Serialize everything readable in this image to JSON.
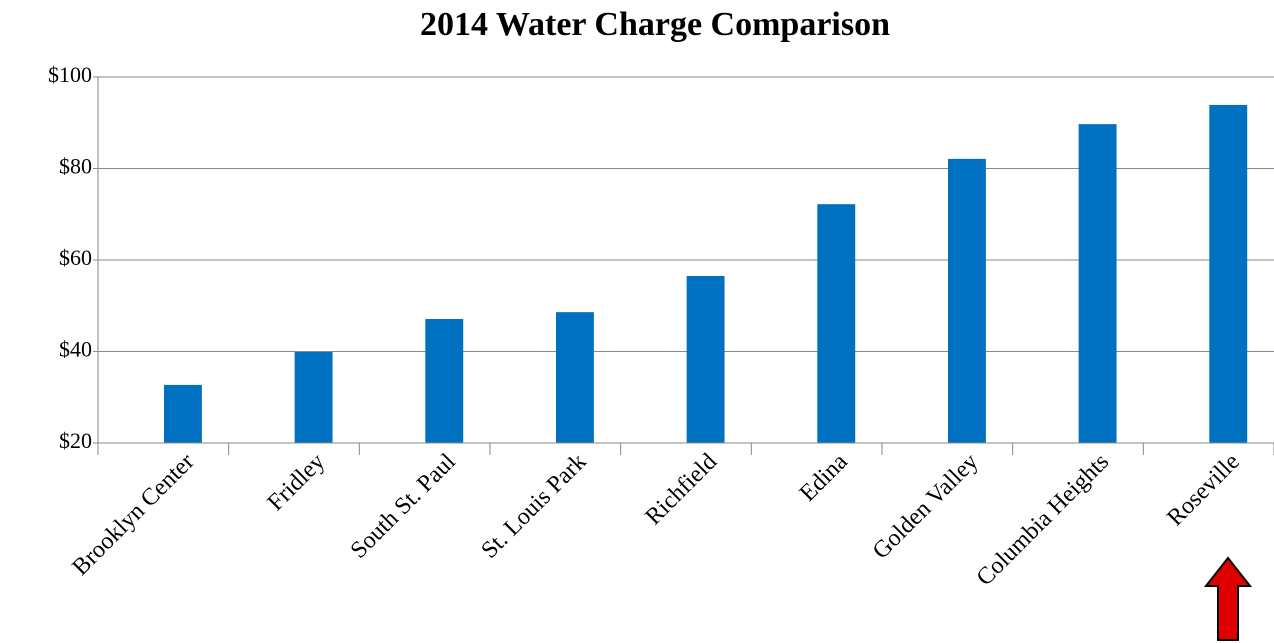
{
  "chart_data": {
    "type": "bar",
    "title": "2014 Water Charge Comparison",
    "categories": [
      "Brooklyn Center",
      "Fridley",
      "South St. Paul",
      "St. Louis Park",
      "Richfield",
      "Edina",
      "Golden Valley",
      "Columbia Heights",
      "Roseville"
    ],
    "values": [
      32.7,
      39.9,
      47.1,
      48.6,
      56.5,
      72.2,
      82.1,
      89.7,
      93.9
    ],
    "color": "#0070c0",
    "ylim": [
      20,
      100
    ],
    "yticks": [
      {
        "value": 20,
        "label": "$20"
      },
      {
        "value": 40,
        "label": "$40"
      },
      {
        "value": 60,
        "label": "$60"
      },
      {
        "value": 80,
        "label": "$80"
      },
      {
        "value": 100,
        "label": "$100"
      }
    ],
    "grid": true
  }
}
